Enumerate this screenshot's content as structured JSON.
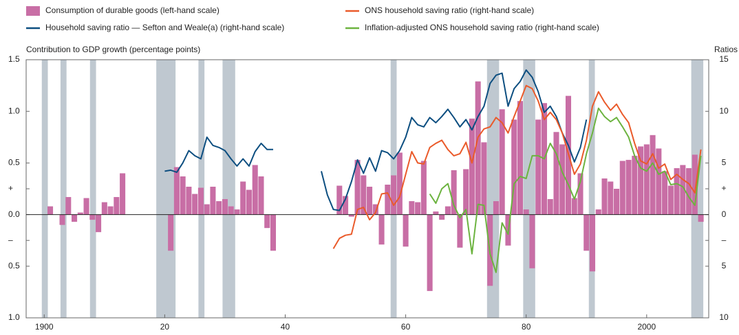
{
  "chart_data": {
    "type": "bar",
    "y_label": "Contribution to GDP growth (percentage points)",
    "y2_label": "Ratios",
    "xlim": [
      1897,
      2010.3
    ],
    "xticks": [
      {
        "value": 1900,
        "label": "1900"
      },
      {
        "value": 1920,
        "label": "20"
      },
      {
        "value": 1940,
        "label": "40"
      },
      {
        "value": 1960,
        "label": "60"
      },
      {
        "value": 1980,
        "label": "80"
      },
      {
        "value": 2000,
        "label": "2000"
      }
    ],
    "ylim": [
      -1.0,
      1.5
    ],
    "yticks": [
      1.5,
      {
        "value": 1.0,
        "label": "1.0"
      },
      0.5,
      {
        "value": 0.25,
        "label": "+"
      },
      {
        "value": 0,
        "label": "0.0"
      },
      {
        "value": -0.25,
        "label": "–"
      },
      {
        "value": -0.5,
        "label": "0.5"
      },
      {
        "value": -1.0,
        "label": "1.0"
      }
    ],
    "y2lim": [
      -10,
      15
    ],
    "y2ticks": [
      15,
      10,
      5,
      {
        "value": 2.5,
        "label": "+"
      },
      0,
      {
        "value": -2.5,
        "label": "–"
      },
      {
        "value": -5,
        "label": "5"
      },
      {
        "value": -10,
        "label": "10"
      }
    ],
    "shaded_color": "#bfc8d0",
    "shaded_periods": [
      [
        1899.6,
        1900.6
      ],
      [
        1902.7,
        1903.7
      ],
      [
        1907.6,
        1908.6
      ],
      [
        1918.6,
        1921.8
      ],
      [
        1925.6,
        1926.6
      ],
      [
        1929.6,
        1931.7
      ],
      [
        1957.5,
        1958.5
      ],
      [
        1973.5,
        1975.5
      ],
      [
        1979.5,
        1981.5
      ],
      [
        1990.4,
        1991.4
      ],
      [
        2007.4,
        2009.4
      ]
    ],
    "series": [
      {
        "name": "Consumption of durable goods (left-hand scale)",
        "type": "bar",
        "color": "#c86ea5",
        "x": [
          1901,
          1902,
          1903,
          1904,
          1905,
          1906,
          1907,
          1908,
          1909,
          1910,
          1911,
          1912,
          1913,
          1921,
          1922,
          1923,
          1924,
          1925,
          1926,
          1927,
          1928,
          1929,
          1930,
          1931,
          1932,
          1933,
          1934,
          1935,
          1936,
          1937,
          1938,
          1949,
          1950,
          1951,
          1952,
          1953,
          1954,
          1955,
          1956,
          1957,
          1958,
          1959,
          1960,
          1961,
          1962,
          1963,
          1964,
          1965,
          1966,
          1967,
          1968,
          1969,
          1970,
          1971,
          1972,
          1973,
          1974,
          1975,
          1976,
          1977,
          1978,
          1979,
          1980,
          1981,
          1982,
          1983,
          1984,
          1985,
          1986,
          1987,
          1988,
          1989,
          1990,
          1991,
          1992,
          1993,
          1994,
          1995,
          1996,
          1997,
          1998,
          1999,
          2000,
          2001,
          2002,
          2003,
          2004,
          2005,
          2006,
          2007,
          2008,
          2009
        ],
        "values": [
          0.08,
          0,
          -0.1,
          0.17,
          -0.07,
          0.02,
          0.16,
          -0.05,
          -0.17,
          0.12,
          0.08,
          0.17,
          0.4,
          -0.35,
          0.46,
          0.37,
          0.27,
          0.2,
          0.26,
          0.1,
          0.27,
          0.13,
          0.15,
          0.08,
          0.05,
          0.32,
          0.24,
          0.48,
          0.37,
          -0.13,
          -0.35,
          0.28,
          0.18,
          -0.02,
          0.53,
          0.38,
          0.27,
          0.1,
          -0.29,
          0.29,
          0.38,
          0.6,
          -0.31,
          0.13,
          0.12,
          0.52,
          -0.74,
          0.03,
          -0.05,
          0.08,
          0.43,
          -0.32,
          0.44,
          0.93,
          1.29,
          0.7,
          -0.69,
          0.13,
          1.02,
          -0.3,
          0.92,
          1.1,
          0.05,
          -0.52,
          0.92,
          1.08,
          0.15,
          0.8,
          0.68,
          1.15,
          0.16,
          0.4,
          -0.35,
          -0.55,
          0.05,
          0.35,
          0.32,
          0.25,
          0.52,
          0.53,
          0.57,
          0.66,
          0.68,
          0.77,
          0.64,
          0.42,
          0.28,
          0.45,
          0.48,
          0.45,
          0.58,
          -0.07
        ]
      },
      {
        "name": "Household saving ratio — Sefton and Weale(a) (right-hand scale)",
        "type": "line",
        "axis": "y2",
        "color": "#0c4e80",
        "x": [
          1920,
          1921,
          1922,
          1923,
          1924,
          1925,
          1926,
          1927,
          1928,
          1929,
          1930,
          1931,
          1932,
          1933,
          1934,
          1935,
          1936,
          1937,
          1938,
          1942,
          1946,
          1947,
          1948,
          1949,
          1950,
          1951,
          1952,
          1953,
          1954,
          1955,
          1956,
          1957,
          1958,
          1959,
          1960,
          1961,
          1962,
          1963,
          1964,
          1965,
          1966,
          1967,
          1968,
          1969,
          1970,
          1971,
          1972,
          1973,
          1974,
          1975,
          1976,
          1977,
          1978,
          1979,
          1980,
          1981,
          1982,
          1983,
          1984,
          1985,
          1986,
          1987,
          1988,
          1989,
          1990
        ],
        "values": [
          4.2,
          4.3,
          4.1,
          5.0,
          6.2,
          5.7,
          5.4,
          7.5,
          6.7,
          6.5,
          6.2,
          5.4,
          4.7,
          5.4,
          4.7,
          6.1,
          6.9,
          6.3,
          6.3,
          null,
          4.2,
          1.9,
          0.5,
          0.4,
          1.5,
          3.2,
          5.3,
          4.0,
          5.5,
          4.2,
          6.2,
          6.0,
          5.4,
          6.2,
          7.5,
          9.4,
          8.7,
          8.5,
          9.4,
          8.9,
          9.5,
          10.2,
          9.4,
          8.5,
          9.2,
          8.2,
          9.5,
          10.5,
          12.7,
          13.5,
          13.7,
          10.5,
          12.2,
          12.9,
          14.0,
          13.3,
          11.9,
          9.9,
          10.5,
          9.5,
          7.9,
          6.7,
          5.1,
          6.5,
          9.2
        ]
      },
      {
        "name": "ONS household saving ratio (right-hand scale)",
        "type": "line",
        "axis": "y2",
        "color": "#ea5a2a",
        "x": [
          1948,
          1949,
          1950,
          1951,
          1952,
          1953,
          1954,
          1955,
          1956,
          1957,
          1958,
          1959,
          1960,
          1961,
          1962,
          1963,
          1964,
          1965,
          1966,
          1967,
          1968,
          1969,
          1970,
          1971,
          1972,
          1973,
          1974,
          1975,
          1976,
          1977,
          1978,
          1979,
          1980,
          1981,
          1982,
          1983,
          1984,
          1985,
          1986,
          1987,
          1988,
          1989,
          1990,
          1991,
          1992,
          1993,
          1994,
          1995,
          1996,
          1997,
          1998,
          1999,
          2000,
          2001,
          2002,
          2003,
          2004,
          2005,
          2006,
          2007,
          2008,
          2009
        ],
        "values": [
          -3.3,
          -2.3,
          -2.0,
          -1.9,
          0.5,
          0.7,
          -0.5,
          0.2,
          2.0,
          2.1,
          0.9,
          1.7,
          3.9,
          6.1,
          5.0,
          4.9,
          6.5,
          6.9,
          7.2,
          6.3,
          5.7,
          5.9,
          7.0,
          5.0,
          7.5,
          8.3,
          8.5,
          9.4,
          8.9,
          7.9,
          9.5,
          11.0,
          12.5,
          12.2,
          11.0,
          9.2,
          9.9,
          9.2,
          7.9,
          5.9,
          3.9,
          4.9,
          7.2,
          10.5,
          11.9,
          10.9,
          10.1,
          10.7,
          9.7,
          8.9,
          6.9,
          5.2,
          4.9,
          5.9,
          4.5,
          4.9,
          3.4,
          3.9,
          3.4,
          3.0,
          2.1,
          6.3
        ]
      },
      {
        "name": "Inflation-adjusted ONS household saving ratio (right-hand scale)",
        "type": "line",
        "axis": "y2",
        "color": "#6cb33f",
        "x": [
          1964,
          1965,
          1966,
          1967,
          1968,
          1969,
          1970,
          1971,
          1972,
          1973,
          1974,
          1975,
          1976,
          1977,
          1978,
          1979,
          1980,
          1981,
          1982,
          1983,
          1984,
          1985,
          1986,
          1987,
          1988,
          1989,
          1990,
          1991,
          1992,
          1993,
          1994,
          1995,
          1996,
          1997,
          1998,
          1999,
          2000,
          2001,
          2002,
          2003,
          2004,
          2005,
          2006,
          2007,
          2008,
          2009
        ],
        "values": [
          2.0,
          1.1,
          2.5,
          3.0,
          0.9,
          -0.3,
          0.5,
          -3.8,
          1.0,
          0.9,
          -3.8,
          -5.6,
          -0.8,
          -1.9,
          3.0,
          3.7,
          3.5,
          5.7,
          5.7,
          5.4,
          6.9,
          5.9,
          4.1,
          2.9,
          1.5,
          3.2,
          5.9,
          7.9,
          10.3,
          9.5,
          9.0,
          9.4,
          8.5,
          7.5,
          5.7,
          4.5,
          4.2,
          5.0,
          3.9,
          4.2,
          2.9,
          3.0,
          2.7,
          1.7,
          0.9,
          5.7
        ]
      }
    ]
  }
}
